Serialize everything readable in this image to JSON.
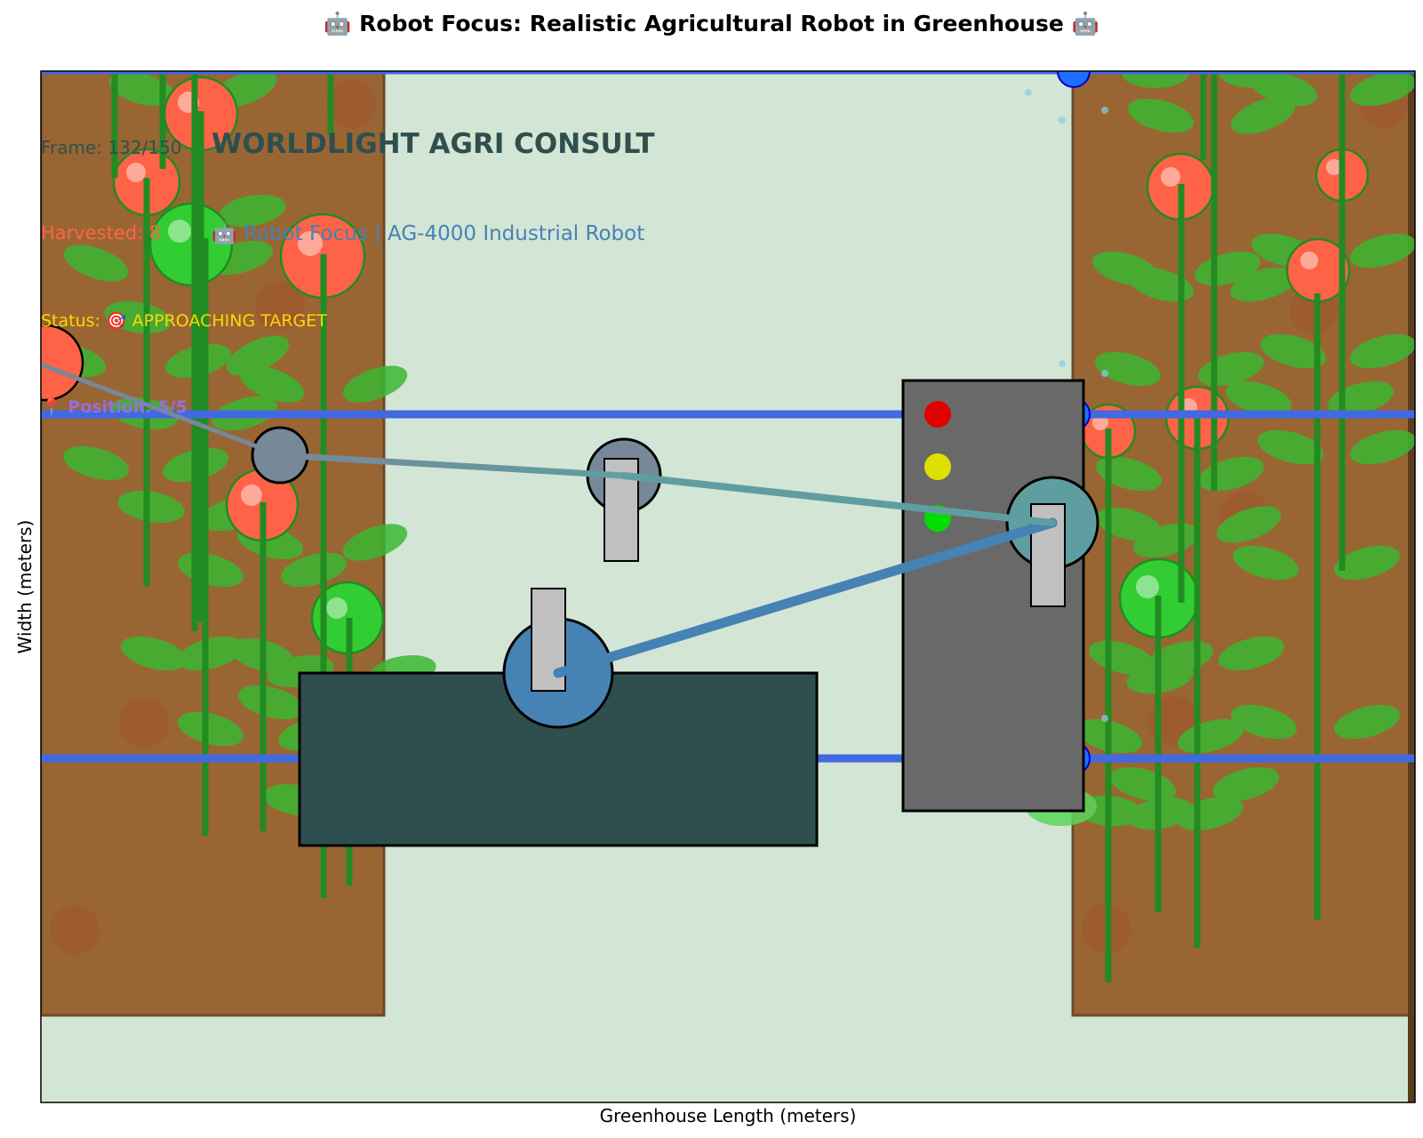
{
  "title": "🤖 Robot Focus: Realistic Agricultural Robot in Greenhouse 🤖",
  "xlabel": "Greenhouse Length (meters)",
  "ylabel": "Width (meters)",
  "overlay": {
    "frame": "Frame: 132/150",
    "company": "WORLDLIGHT AGRI CONSULT",
    "harvested": "Harvested: 8",
    "focus": "🤖 Robot Focus | AG-4000 Industrial Robot",
    "status": "Status: 🎯 APPROACHING TARGET",
    "position": "📍 Position: 5/5"
  },
  "colors": {
    "aisle": "#d3e5d4",
    "soil": "#996633",
    "soil_edge": "#6b4a2b",
    "rail": "#4169e1",
    "robot_base": "#2f4f4f",
    "control_panel": "#696969",
    "joint_base": "#4682b4",
    "joint_mid": "#5f9ea0",
    "joint_tip": "#778899",
    "ripe_tomato": "#ff6347",
    "unripe_tomato": "#32cd32",
    "leaf": "#3cb832",
    "stem": "#228b22"
  },
  "indicators": [
    "red",
    "yellow",
    "green"
  ]
}
